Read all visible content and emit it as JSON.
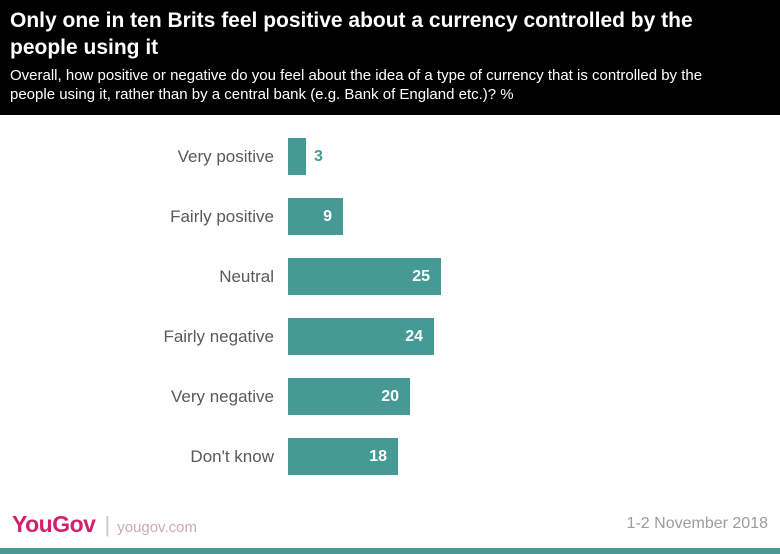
{
  "header": {
    "title": "Only one in ten Brits feel positive about a currency controlled by the people using it",
    "subtitle": "Overall, how positive or negative do you feel about the idea of a type of currency that is controlled by the people using it, rather than by a central bank (e.g. Bank of England etc.)? %"
  },
  "chart_data": {
    "type": "bar",
    "orientation": "horizontal",
    "title": "Only one in ten Brits feel positive about a currency controlled by the people using it",
    "categories": [
      "Very positive",
      "Fairly positive",
      "Neutral",
      "Fairly negative",
      "Very negative",
      "Don't know"
    ],
    "values": [
      3,
      9,
      25,
      24,
      20,
      18
    ],
    "unit": "%",
    "xlim": [
      0,
      25
    ],
    "bar_color": "#459a96",
    "grid": false,
    "legend": false
  },
  "footer": {
    "logo": "YouGov",
    "separator": "|",
    "site": "yougov.com",
    "date": "1-2 November  2018"
  }
}
